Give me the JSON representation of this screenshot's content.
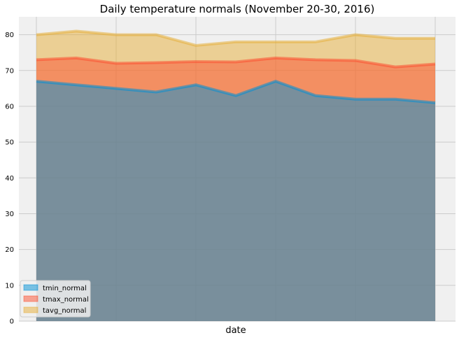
{
  "chart_data": {
    "type": "area",
    "title": "Daily temperature normals (November 20-30, 2016)",
    "xlabel": "date",
    "ylabel": "",
    "ylim": [
      0,
      85
    ],
    "yticks": [
      0,
      10,
      20,
      30,
      40,
      50,
      60,
      70,
      80
    ],
    "x": [
      0,
      1,
      2,
      3,
      4,
      5,
      6,
      7,
      8,
      9,
      10
    ],
    "grid": true,
    "stacked": false,
    "legend_position": "lower-left",
    "background": "#f0f0f0",
    "series": [
      {
        "name": "tmin_normal",
        "values": [
          67,
          66,
          65,
          64,
          66,
          63,
          67,
          63,
          62,
          62,
          61
        ],
        "fill": "#008fd5",
        "line": "#008fd5"
      },
      {
        "name": "tmax_normal",
        "values": [
          73,
          73.5,
          72,
          72.2,
          72.5,
          72.4,
          73.5,
          73,
          72.8,
          71,
          71.8
        ],
        "fill": "#fc4f30",
        "line": "#fc4f30"
      },
      {
        "name": "tavg_normal",
        "values": [
          80,
          81,
          80,
          80,
          77,
          78,
          78,
          78,
          80,
          79,
          79
        ],
        "fill": "#e5ae38",
        "line": "#e5ae38"
      }
    ]
  }
}
